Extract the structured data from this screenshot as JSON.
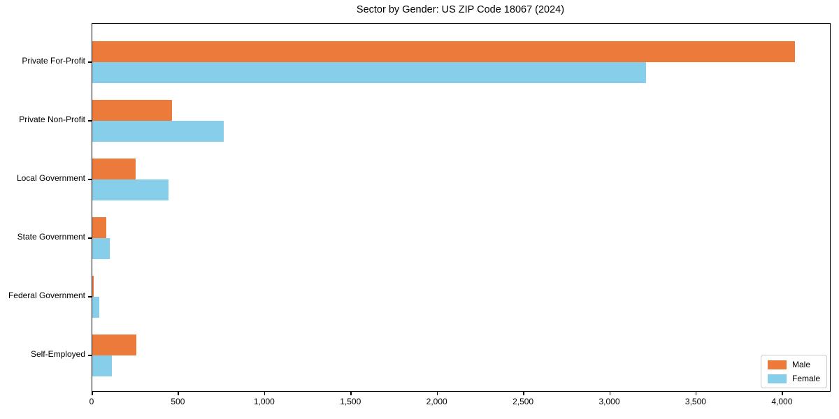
{
  "chart_data": {
    "type": "bar",
    "orientation": "horizontal",
    "title": "Sector by Gender: US ZIP Code 18067 (2024)",
    "categories": [
      "Private For-Profit",
      "Private Non-Profit",
      "Local Government",
      "State Government",
      "Federal Government",
      "Self-Employed"
    ],
    "series": [
      {
        "name": "Male",
        "color": "#EB7A3B",
        "values": [
          4070,
          460,
          250,
          80,
          8,
          255
        ]
      },
      {
        "name": "Female",
        "color": "#87CEEB",
        "values": [
          3210,
          760,
          440,
          100,
          40,
          115
        ]
      }
    ],
    "xlabel": "",
    "ylabel": "",
    "xlim": [
      0,
      4274
    ],
    "xticks": [
      0,
      500,
      1000,
      1500,
      2000,
      2500,
      3000,
      3500,
      4000
    ],
    "xtick_labels": [
      "0",
      "500",
      "1,000",
      "1,500",
      "2,000",
      "2,500",
      "3,000",
      "3,500",
      "4,000"
    ],
    "grid": false,
    "legend": {
      "position": "lower right",
      "entries": [
        "Male",
        "Female"
      ]
    },
    "colors": {
      "background": "#ffffff",
      "axis": "#000000",
      "legend_border": "#cccccc"
    }
  }
}
